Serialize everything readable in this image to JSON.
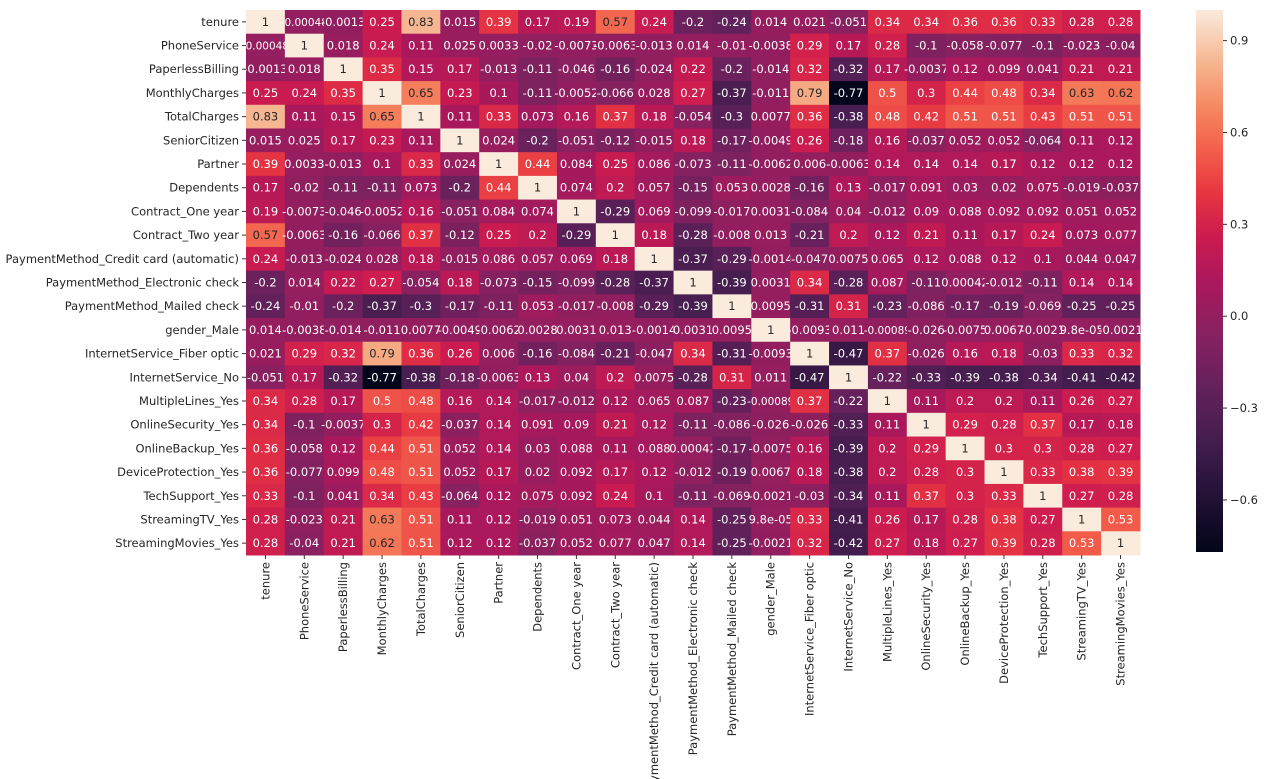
{
  "chart_data": {
    "type": "heatmap",
    "title": "",
    "xlabel": "",
    "ylabel": "",
    "labels": [
      "tenure",
      "PhoneService",
      "PaperlessBilling",
      "MonthlyCharges",
      "TotalCharges",
      "SeniorCitizen",
      "Partner",
      "Dependents",
      "Contract_One year",
      "Contract_Two year",
      "PaymentMethod_Credit card (automatic)",
      "PaymentMethod_Electronic check",
      "PaymentMethod_Mailed check",
      "gender_Male",
      "InternetService_Fiber optic",
      "InternetService_No",
      "MultipleLines_Yes",
      "OnlineSecurity_Yes",
      "OnlineBackup_Yes",
      "DeviceProtection_Yes",
      "TechSupport_Yes",
      "StreamingTV_Yes",
      "StreamingMovies_Yes"
    ],
    "matrix": [
      [
        "1",
        "-0.00048",
        "-0.0013",
        "0.25",
        "0.83",
        "0.015",
        "0.39",
        "0.17",
        "0.19",
        "0.57",
        "0.24",
        "-0.2",
        "-0.24",
        "0.014",
        "0.021",
        "-0.051",
        "0.34",
        "0.34",
        "0.36",
        "0.36",
        "0.33",
        "0.28",
        "0.28"
      ],
      [
        "-0.00048",
        "1",
        "0.018",
        "0.24",
        "0.11",
        "0.025",
        "0.0033",
        "-0.02",
        "-0.0073",
        "-0.0063",
        "-0.013",
        "0.014",
        "-0.01",
        "-0.0038",
        "0.29",
        "0.17",
        "0.28",
        "-0.1",
        "-0.058",
        "-0.077",
        "-0.1",
        "-0.023",
        "-0.04"
      ],
      [
        "-0.0013",
        "0.018",
        "1",
        "0.35",
        "0.15",
        "0.17",
        "-0.013",
        "-0.11",
        "-0.046",
        "-0.16",
        "-0.024",
        "0.22",
        "-0.2",
        "-0.014",
        "0.32",
        "-0.32",
        "0.17",
        "-0.0037",
        "0.12",
        "0.099",
        "0.041",
        "0.21",
        "0.21"
      ],
      [
        "0.25",
        "0.24",
        "0.35",
        "1",
        "0.65",
        "0.23",
        "0.1",
        "-0.11",
        "-0.0052",
        "-0.066",
        "0.028",
        "0.27",
        "-0.37",
        "-0.011",
        "0.79",
        "-0.77",
        "0.5",
        "0.3",
        "0.44",
        "0.48",
        "0.34",
        "0.63",
        "0.62"
      ],
      [
        "0.83",
        "0.11",
        "0.15",
        "0.65",
        "1",
        "0.11",
        "0.33",
        "0.073",
        "0.16",
        "0.37",
        "0.18",
        "-0.054",
        "-0.3",
        "0.0077",
        "0.36",
        "-0.38",
        "0.48",
        "0.42",
        "0.51",
        "0.51",
        "0.43",
        "0.51",
        "0.51"
      ],
      [
        "0.015",
        "0.025",
        "0.17",
        "0.23",
        "0.11",
        "1",
        "0.024",
        "-0.2",
        "-0.051",
        "-0.12",
        "-0.015",
        "0.18",
        "-0.17",
        "-0.0049",
        "0.26",
        "-0.18",
        "0.16",
        "-0.037",
        "0.052",
        "0.052",
        "-0.064",
        "0.11",
        "0.12"
      ],
      [
        "0.39",
        "0.0033",
        "-0.013",
        "0.1",
        "0.33",
        "0.024",
        "1",
        "0.44",
        "0.084",
        "0.25",
        "0.086",
        "-0.073",
        "-0.11",
        "-0.0062",
        "0.006",
        "-0.0063",
        "0.14",
        "0.14",
        "0.14",
        "0.17",
        "0.12",
        "0.12",
        "0.12"
      ],
      [
        "0.17",
        "-0.02",
        "-0.11",
        "-0.11",
        "0.073",
        "-0.2",
        "0.44",
        "1",
        "0.074",
        "0.2",
        "0.057",
        "-0.15",
        "0.053",
        "0.0028",
        "-0.16",
        "0.13",
        "-0.017",
        "0.091",
        "0.03",
        "0.02",
        "0.075",
        "-0.019",
        "-0.037"
      ],
      [
        "0.19",
        "-0.0073",
        "-0.046",
        "-0.0052",
        "0.16",
        "-0.051",
        "0.084",
        "0.074",
        "1",
        "-0.29",
        "0.069",
        "-0.099",
        "-0.017",
        "0.0031",
        "-0.084",
        "0.04",
        "-0.012",
        "0.09",
        "0.088",
        "0.092",
        "0.092",
        "0.051",
        "0.052"
      ],
      [
        "0.57",
        "-0.0063",
        "-0.16",
        "-0.066",
        "0.37",
        "-0.12",
        "0.25",
        "0.2",
        "-0.29",
        "1",
        "0.18",
        "-0.28",
        "-0.008",
        "0.013",
        "-0.21",
        "0.2",
        "0.12",
        "0.21",
        "0.11",
        "0.17",
        "0.24",
        "0.073",
        "0.077"
      ],
      [
        "0.24",
        "-0.013",
        "-0.024",
        "0.028",
        "0.18",
        "-0.015",
        "0.086",
        "0.057",
        "0.069",
        "0.18",
        "1",
        "-0.37",
        "-0.29",
        "-0.0014",
        "-0.047",
        "0.0075",
        "0.065",
        "0.12",
        "0.088",
        "0.12",
        "0.1",
        "0.044",
        "0.047"
      ],
      [
        "-0.2",
        "0.014",
        "0.22",
        "0.27",
        "-0.054",
        "0.18",
        "-0.073",
        "-0.15",
        "-0.099",
        "-0.28",
        "-0.37",
        "1",
        "-0.39",
        "0.0031",
        "0.34",
        "-0.28",
        "0.087",
        "-0.11",
        "0.00042",
        "-0.012",
        "-0.11",
        "0.14",
        "0.14"
      ],
      [
        "-0.24",
        "-0.01",
        "-0.2",
        "-0.37",
        "-0.3",
        "-0.17",
        "-0.11",
        "0.053",
        "-0.017",
        "-0.008",
        "-0.29",
        "-0.39",
        "1",
        "0.0095",
        "-0.31",
        "0.31",
        "-0.23",
        "-0.086",
        "-0.17",
        "-0.19",
        "-0.069",
        "-0.25",
        "-0.25"
      ],
      [
        "0.014",
        "-0.0038",
        "-0.014",
        "-0.011",
        "0.0077",
        "-0.0049",
        "-0.0062",
        "0.0028",
        "0.0031",
        "0.013",
        "-0.0014",
        "0.0031",
        "0.0095",
        "1",
        "-0.0093",
        "0.011",
        "-0.00089",
        "-0.026",
        "-0.0075",
        "0.0067",
        "-0.0021",
        "9.8e-05",
        "-0.0021"
      ],
      [
        "0.021",
        "0.29",
        "0.32",
        "0.79",
        "0.36",
        "0.26",
        "0.006",
        "-0.16",
        "-0.084",
        "-0.21",
        "-0.047",
        "0.34",
        "-0.31",
        "-0.0093",
        "1",
        "-0.47",
        "0.37",
        "-0.026",
        "0.16",
        "0.18",
        "-0.03",
        "0.33",
        "0.32"
      ],
      [
        "-0.051",
        "0.17",
        "-0.32",
        "-0.77",
        "-0.38",
        "-0.18",
        "-0.0063",
        "0.13",
        "0.04",
        "0.2",
        "0.0075",
        "-0.28",
        "0.31",
        "0.011",
        "-0.47",
        "1",
        "-0.22",
        "-0.33",
        "-0.39",
        "-0.38",
        "-0.34",
        "-0.41",
        "-0.42"
      ],
      [
        "0.34",
        "0.28",
        "0.17",
        "0.5",
        "0.48",
        "0.16",
        "0.14",
        "-0.017",
        "-0.012",
        "0.12",
        "0.065",
        "0.087",
        "-0.23",
        "-0.00089",
        "0.37",
        "-0.22",
        "1",
        "0.11",
        "0.2",
        "0.2",
        "0.11",
        "0.26",
        "0.27"
      ],
      [
        "0.34",
        "-0.1",
        "-0.0037",
        "0.3",
        "0.42",
        "-0.037",
        "0.14",
        "0.091",
        "0.09",
        "0.21",
        "0.12",
        "-0.11",
        "-0.086",
        "-0.026",
        "-0.026",
        "-0.33",
        "0.11",
        "1",
        "0.29",
        "0.28",
        "0.37",
        "0.17",
        "0.18"
      ],
      [
        "0.36",
        "-0.058",
        "0.12",
        "0.44",
        "0.51",
        "0.052",
        "0.14",
        "0.03",
        "0.088",
        "0.11",
        "0.088",
        "0.00042",
        "-0.17",
        "-0.0075",
        "0.16",
        "-0.39",
        "0.2",
        "0.29",
        "1",
        "0.3",
        "0.3",
        "0.28",
        "0.27"
      ],
      [
        "0.36",
        "-0.077",
        "0.099",
        "0.48",
        "0.51",
        "0.052",
        "0.17",
        "0.02",
        "0.092",
        "0.17",
        "0.12",
        "-0.012",
        "-0.19",
        "0.0067",
        "0.18",
        "-0.38",
        "0.2",
        "0.28",
        "0.3",
        "1",
        "0.33",
        "0.38",
        "0.39"
      ],
      [
        "0.33",
        "-0.1",
        "0.041",
        "0.34",
        "0.43",
        "-0.064",
        "0.12",
        "0.075",
        "0.092",
        "0.24",
        "0.1",
        "-0.11",
        "-0.069",
        "-0.0021",
        "-0.03",
        "-0.34",
        "0.11",
        "0.37",
        "0.3",
        "0.33",
        "1",
        "0.27",
        "0.28"
      ],
      [
        "0.28",
        "-0.023",
        "0.21",
        "0.63",
        "0.51",
        "0.11",
        "0.12",
        "-0.019",
        "0.051",
        "0.073",
        "0.044",
        "0.14",
        "-0.25",
        "9.8e-05",
        "0.33",
        "-0.41",
        "0.26",
        "0.17",
        "0.28",
        "0.38",
        "0.27",
        "1",
        "0.53"
      ],
      [
        "0.28",
        "-0.04",
        "0.21",
        "0.62",
        "0.51",
        "0.12",
        "0.12",
        "-0.037",
        "0.052",
        "0.077",
        "0.047",
        "0.14",
        "-0.25",
        "-0.0021",
        "0.32",
        "-0.42",
        "0.27",
        "0.18",
        "0.27",
        "0.39",
        "0.28",
        "0.53",
        "1"
      ]
    ],
    "colorbar": {
      "ticks": [
        "0.9",
        "0.6",
        "0.3",
        "0.0",
        "−0.3",
        "−0.6"
      ],
      "tick_values": [
        0.9,
        0.6,
        0.3,
        0.0,
        -0.3,
        -0.6
      ],
      "range": [
        -0.77,
        1.0
      ],
      "colormap": "rocket"
    },
    "grid": false,
    "legend": "colorbar-right"
  }
}
